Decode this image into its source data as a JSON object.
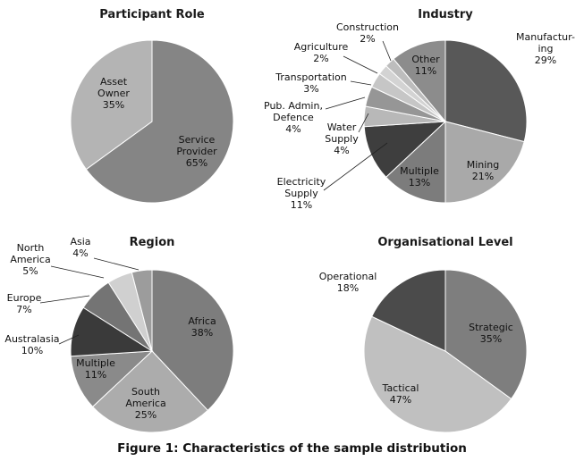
{
  "caption": "Figure 1: Characteristics of the sample distribution",
  "chart_data": [
    {
      "type": "pie",
      "title": "Participant Role",
      "slices": [
        {
          "label": [
            "Service",
            "Provider"
          ],
          "value": 65,
          "display": "65%",
          "color": "#858585"
        },
        {
          "label": [
            "Asset",
            "Owner"
          ],
          "value": 35,
          "display": "35%",
          "color": "#b4b4b4"
        }
      ]
    },
    {
      "type": "pie",
      "title": "Industry",
      "slices": [
        {
          "label": [
            "Manufactur-",
            "ing"
          ],
          "value": 29,
          "display": "29%",
          "color": "#585858"
        },
        {
          "label": [
            "Mining"
          ],
          "value": 21,
          "display": "21%",
          "color": "#a9a9a9"
        },
        {
          "label": [
            "Multiple"
          ],
          "value": 13,
          "display": "13%",
          "color": "#7c7c7c"
        },
        {
          "label": [
            "Electricity",
            "Supply"
          ],
          "value": 11,
          "display": "11%",
          "color": "#3e3e3e"
        },
        {
          "label": [
            "Water",
            "Supply"
          ],
          "value": 4,
          "display": "4%",
          "color": "#b8b8b8"
        },
        {
          "label": [
            "Pub. Admin,",
            "Defence"
          ],
          "value": 4,
          "display": "4%",
          "color": "#969696"
        },
        {
          "label": [
            "Transportation"
          ],
          "value": 3,
          "display": "3%",
          "color": "#c6c6c6"
        },
        {
          "label": [
            "Agriculture"
          ],
          "value": 2,
          "display": "2%",
          "color": "#d3d3d3"
        },
        {
          "label": [
            "Construction"
          ],
          "value": 2,
          "display": "2%",
          "color": "#bdbdbd"
        },
        {
          "label": [
            "Other"
          ],
          "value": 11,
          "display": "11%",
          "color": "#8c8c8c"
        }
      ]
    },
    {
      "type": "pie",
      "title": "Region",
      "slices": [
        {
          "label": [
            "Africa"
          ],
          "value": 38,
          "display": "38%",
          "color": "#7d7d7d"
        },
        {
          "label": [
            "South",
            "America"
          ],
          "value": 25,
          "display": "25%",
          "color": "#acacac"
        },
        {
          "label": [
            "Multiple"
          ],
          "value": 11,
          "display": "11%",
          "color": "#8a8a8a"
        },
        {
          "label": [
            "Australasia"
          ],
          "value": 10,
          "display": "10%",
          "color": "#3a3a3a"
        },
        {
          "label": [
            "Europe"
          ],
          "value": 7,
          "display": "7%",
          "color": "#747474"
        },
        {
          "label": [
            "North",
            "America"
          ],
          "value": 5,
          "display": "5%",
          "color": "#d0d0d0"
        },
        {
          "label": [
            "Asia"
          ],
          "value": 4,
          "display": "4%",
          "color": "#9c9c9c"
        }
      ]
    },
    {
      "type": "pie",
      "title": "Organisational Level",
      "slices": [
        {
          "label": [
            "Strategic"
          ],
          "value": 35,
          "display": "35%",
          "color": "#7e7e7e"
        },
        {
          "label": [
            "Tactical"
          ],
          "value": 47,
          "display": "47%",
          "color": "#c0c0c0"
        },
        {
          "label": [
            "Operational"
          ],
          "value": 18,
          "display": "18%",
          "color": "#4b4b4b"
        }
      ]
    }
  ]
}
